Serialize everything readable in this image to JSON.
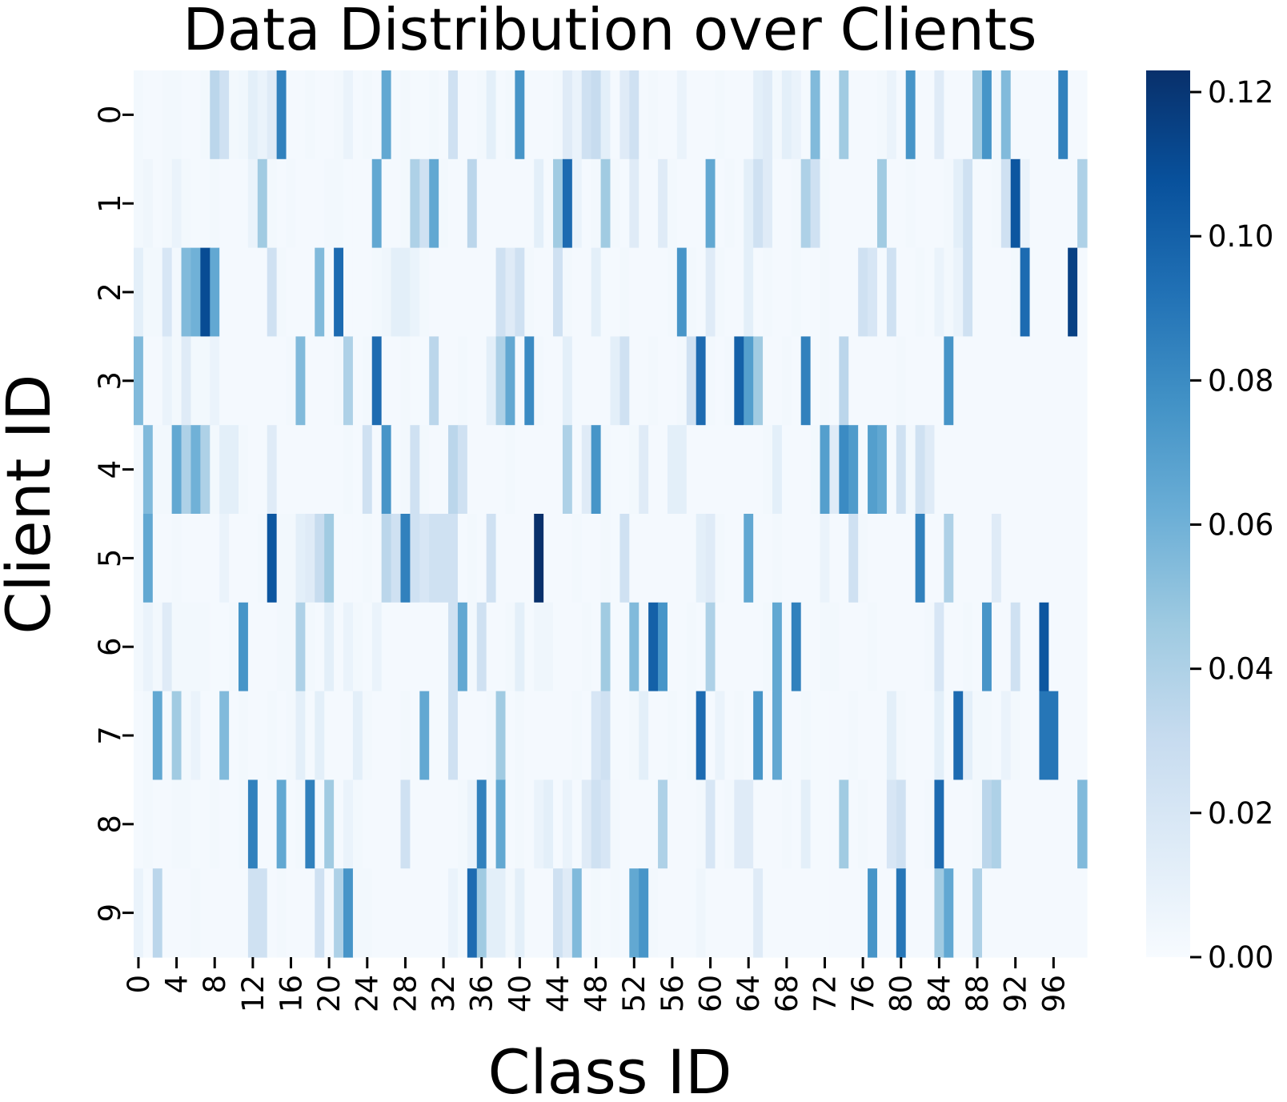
{
  "chart_data": {
    "type": "heatmap",
    "title": "Data Distribution over Clients",
    "xlabel": "Class ID",
    "ylabel": "Client ID",
    "colormap": "Blues",
    "colors": {
      "low": "#f7fbff",
      "high": "#08306b"
    },
    "num_classes": 100,
    "rows": [
      "0",
      "1",
      "2",
      "3",
      "4",
      "5",
      "6",
      "7",
      "8",
      "9"
    ],
    "x_tick_labels": [
      "0",
      "4",
      "8",
      "12",
      "16",
      "20",
      "24",
      "28",
      "32",
      "36",
      "40",
      "44",
      "48",
      "52",
      "56",
      "60",
      "64",
      "68",
      "72",
      "76",
      "80",
      "84",
      "88",
      "92",
      "96"
    ],
    "x_tick_values": [
      0,
      4,
      8,
      12,
      16,
      20,
      24,
      28,
      32,
      36,
      40,
      44,
      48,
      52,
      56,
      60,
      64,
      68,
      72,
      76,
      80,
      84,
      88,
      92,
      96
    ],
    "colorbar": {
      "range": [
        0,
        0.123
      ],
      "ticks": [
        0.0,
        0.02,
        0.04,
        0.06,
        0.08,
        0.1,
        0.12
      ],
      "tick_labels": [
        "0.00",
        "0.02",
        "0.04",
        "0.06",
        "0.08",
        "0.10",
        "0.12"
      ]
    },
    "values": [
      [
        0.003,
        0.002,
        0.002,
        0.003,
        0.003,
        0.002,
        0.002,
        0.003,
        0.035,
        0.025,
        0.003,
        0.004,
        0.012,
        0.008,
        0.015,
        0.085,
        0.002,
        0.002,
        0.003,
        0.002,
        0.002,
        0.003,
        0.008,
        0.002,
        0.003,
        0.002,
        0.065,
        0.002,
        0.003,
        0.002,
        0.002,
        0.003,
        0.002,
        0.025,
        0.002,
        0.002,
        0.003,
        0.012,
        0.002,
        0.003,
        0.075,
        0.002,
        0.002,
        0.002,
        0.003,
        0.015,
        0.008,
        0.025,
        0.03,
        0.012,
        0.002,
        0.015,
        0.025,
        0.002,
        0.003,
        0.002,
        0.002,
        0.008,
        0.002,
        0.002,
        0.002,
        0.003,
        0.002,
        0.002,
        0.002,
        0.012,
        0.015,
        0.003,
        0.012,
        0.008,
        0.002,
        0.055,
        0.002,
        0.002,
        0.045,
        0.002,
        0.002,
        0.002,
        0.003,
        0.008,
        0.002,
        0.075,
        0.002,
        0.002,
        0.015,
        0.002,
        0.002,
        0.002,
        0.045,
        0.075,
        0.003,
        0.055,
        0.002,
        0.002,
        0.002,
        0.002,
        0.002,
        0.085,
        0.002,
        0.002
      ],
      [
        0.003,
        0.005,
        0.002,
        0.003,
        0.008,
        0.003,
        0.002,
        0.002,
        0.003,
        0.002,
        0.002,
        0.002,
        0.008,
        0.045,
        0.003,
        0.002,
        0.003,
        0.002,
        0.002,
        0.002,
        0.003,
        0.003,
        0.002,
        0.002,
        0.002,
        0.065,
        0.002,
        0.002,
        0.003,
        0.04,
        0.025,
        0.065,
        0.003,
        0.002,
        0.002,
        0.035,
        0.002,
        0.002,
        0.002,
        0.002,
        0.002,
        0.002,
        0.012,
        0.002,
        0.045,
        0.095,
        0.008,
        0.002,
        0.003,
        0.045,
        0.003,
        0.002,
        0.015,
        0.002,
        0.002,
        0.015,
        0.003,
        0.002,
        0.002,
        0.002,
        0.065,
        0.002,
        0.003,
        0.002,
        0.012,
        0.025,
        0.015,
        0.002,
        0.002,
        0.003,
        0.04,
        0.025,
        0.003,
        0.002,
        0.002,
        0.002,
        0.002,
        0.002,
        0.045,
        0.002,
        0.002,
        0.003,
        0.002,
        0.002,
        0.002,
        0.003,
        0.012,
        0.025,
        0.002,
        0.002,
        0.003,
        0.025,
        0.105,
        0.008,
        0.002,
        0.002,
        0.002,
        0.002,
        0.002,
        0.04
      ],
      [
        0.012,
        0.003,
        0.003,
        0.02,
        0.003,
        0.055,
        0.06,
        0.11,
        0.065,
        0.002,
        0.002,
        0.002,
        0.002,
        0.002,
        0.025,
        0.003,
        0.002,
        0.002,
        0.002,
        0.055,
        0.002,
        0.095,
        0.002,
        0.002,
        0.002,
        0.003,
        0.005,
        0.012,
        0.012,
        0.008,
        0.003,
        0.002,
        0.002,
        0.002,
        0.002,
        0.002,
        0.002,
        0.002,
        0.025,
        0.015,
        0.025,
        0.003,
        0.002,
        0.002,
        0.025,
        0.003,
        0.002,
        0.002,
        0.012,
        0.002,
        0.002,
        0.003,
        0.002,
        0.002,
        0.002,
        0.002,
        0.003,
        0.075,
        0.003,
        0.002,
        0.015,
        0.003,
        0.002,
        0.002,
        0.012,
        0.002,
        0.003,
        0.002,
        0.002,
        0.003,
        0.002,
        0.002,
        0.003,
        0.002,
        0.002,
        0.002,
        0.025,
        0.02,
        0.002,
        0.025,
        0.002,
        0.002,
        0.003,
        0.002,
        0.008,
        0.003,
        0.008,
        0.025,
        0.002,
        0.002,
        0.002,
        0.002,
        0.003,
        0.095,
        0.002,
        0.002,
        0.002,
        0.002,
        0.115,
        0.002
      ],
      [
        0.055,
        0.002,
        0.002,
        0.008,
        0.003,
        0.015,
        0.003,
        0.003,
        0.008,
        0.002,
        0.002,
        0.002,
        0.002,
        0.002,
        0.002,
        0.002,
        0.003,
        0.055,
        0.002,
        0.002,
        0.002,
        0.003,
        0.04,
        0.002,
        0.003,
        0.095,
        0.002,
        0.002,
        0.003,
        0.002,
        0.002,
        0.035,
        0.002,
        0.002,
        0.003,
        0.002,
        0.002,
        0.012,
        0.04,
        0.065,
        0.002,
        0.08,
        0.003,
        0.002,
        0.002,
        0.012,
        0.002,
        0.002,
        0.002,
        0.002,
        0.012,
        0.025,
        0.002,
        0.002,
        0.003,
        0.002,
        0.002,
        0.003,
        0.025,
        0.095,
        0.003,
        0.002,
        0.003,
        0.1,
        0.07,
        0.045,
        0.002,
        0.002,
        0.003,
        0.002,
        0.085,
        0.002,
        0.003,
        0.002,
        0.035,
        0.002,
        0.002,
        0.002,
        0.002,
        0.002,
        0.003,
        0.002,
        0.002,
        0.002,
        0.002,
        0.075,
        0.002,
        0.002,
        0.002,
        0.002,
        0.002,
        0.002,
        0.002,
        0.002,
        0.002,
        0.002,
        0.002,
        0.002,
        0.002,
        0.002
      ],
      [
        0.003,
        0.055,
        0.003,
        0.003,
        0.065,
        0.04,
        0.06,
        0.04,
        0.003,
        0.012,
        0.012,
        0.003,
        0.002,
        0.002,
        0.015,
        0.002,
        0.002,
        0.002,
        0.002,
        0.002,
        0.002,
        0.002,
        0.003,
        0.002,
        0.025,
        0.002,
        0.075,
        0.002,
        0.003,
        0.025,
        0.003,
        0.002,
        0.002,
        0.035,
        0.025,
        0.002,
        0.002,
        0.002,
        0.002,
        0.003,
        0.002,
        0.002,
        0.002,
        0.002,
        0.002,
        0.04,
        0.002,
        0.015,
        0.075,
        0.003,
        0.002,
        0.002,
        0.003,
        0.015,
        0.002,
        0.002,
        0.012,
        0.012,
        0.002,
        0.002,
        0.002,
        0.002,
        0.002,
        0.002,
        0.002,
        0.002,
        0.003,
        0.012,
        0.002,
        0.002,
        0.002,
        0.003,
        0.07,
        0.015,
        0.08,
        0.072,
        0.002,
        0.07,
        0.065,
        0.002,
        0.025,
        0.003,
        0.025,
        0.015,
        0.002,
        0.002,
        0.002,
        0.002,
        0.002,
        0.002,
        0.002,
        0.002,
        0.002,
        0.002,
        0.002,
        0.002,
        0.002,
        0.002,
        0.002,
        0.002
      ],
      [
        0.003,
        0.065,
        0.002,
        0.002,
        0.003,
        0.002,
        0.002,
        0.002,
        0.002,
        0.008,
        0.002,
        0.002,
        0.002,
        0.003,
        0.105,
        0.003,
        0.003,
        0.012,
        0.015,
        0.03,
        0.045,
        0.002,
        0.002,
        0.002,
        0.003,
        0.002,
        0.035,
        0.025,
        0.085,
        0.025,
        0.02,
        0.025,
        0.025,
        0.025,
        0.002,
        0.003,
        0.002,
        0.025,
        0.002,
        0.002,
        0.002,
        0.002,
        0.123,
        0.002,
        0.002,
        0.002,
        0.003,
        0.002,
        0.002,
        0.003,
        0.002,
        0.025,
        0.002,
        0.002,
        0.002,
        0.002,
        0.002,
        0.002,
        0.002,
        0.012,
        0.015,
        0.003,
        0.002,
        0.002,
        0.065,
        0.002,
        0.002,
        0.003,
        0.002,
        0.002,
        0.002,
        0.002,
        0.008,
        0.002,
        0.002,
        0.025,
        0.003,
        0.002,
        0.002,
        0.002,
        0.002,
        0.002,
        0.085,
        0.002,
        0.002,
        0.04,
        0.002,
        0.002,
        0.002,
        0.002,
        0.015,
        0.002,
        0.002,
        0.002,
        0.002,
        0.002,
        0.002,
        0.002,
        0.002,
        0.002
      ],
      [
        0.003,
        0.008,
        0.003,
        0.015,
        0.003,
        0.003,
        0.003,
        0.003,
        0.002,
        0.002,
        0.003,
        0.075,
        0.002,
        0.002,
        0.002,
        0.003,
        0.003,
        0.04,
        0.003,
        0.002,
        0.012,
        0.002,
        0.008,
        0.003,
        0.002,
        0.008,
        0.002,
        0.002,
        0.002,
        0.002,
        0.002,
        0.002,
        0.002,
        0.025,
        0.065,
        0.003,
        0.025,
        0.002,
        0.002,
        0.003,
        0.012,
        0.002,
        0.005,
        0.005,
        0.002,
        0.002,
        0.002,
        0.003,
        0.002,
        0.045,
        0.002,
        0.002,
        0.055,
        0.003,
        0.1,
        0.075,
        0.002,
        0.002,
        0.003,
        0.002,
        0.04,
        0.002,
        0.002,
        0.002,
        0.002,
        0.002,
        0.003,
        0.065,
        0.002,
        0.085,
        0.002,
        0.002,
        0.003,
        0.003,
        0.002,
        0.002,
        0.002,
        0.003,
        0.002,
        0.002,
        0.002,
        0.002,
        0.002,
        0.003,
        0.02,
        0.002,
        0.002,
        0.003,
        0.002,
        0.075,
        0.002,
        0.002,
        0.025,
        0.002,
        0.002,
        0.105,
        0.002,
        0.002,
        0.002,
        0.002
      ],
      [
        0.002,
        0.003,
        0.065,
        0.002,
        0.045,
        0.003,
        0.008,
        0.002,
        0.002,
        0.055,
        0.002,
        0.003,
        0.002,
        0.002,
        0.003,
        0.002,
        0.003,
        0.012,
        0.002,
        0.012,
        0.002,
        0.002,
        0.002,
        0.012,
        0.003,
        0.002,
        0.002,
        0.002,
        0.003,
        0.002,
        0.065,
        0.002,
        0.002,
        0.025,
        0.002,
        0.002,
        0.002,
        0.003,
        0.045,
        0.002,
        0.003,
        0.002,
        0.002,
        0.002,
        0.002,
        0.002,
        0.003,
        0.002,
        0.02,
        0.025,
        0.002,
        0.002,
        0.003,
        0.012,
        0.002,
        0.002,
        0.003,
        0.002,
        0.003,
        0.095,
        0.002,
        0.008,
        0.002,
        0.003,
        0.002,
        0.075,
        0.002,
        0.065,
        0.002,
        0.002,
        0.003,
        0.002,
        0.002,
        0.002,
        0.002,
        0.003,
        0.002,
        0.002,
        0.002,
        0.012,
        0.003,
        0.002,
        0.002,
        0.002,
        0.012,
        0.002,
        0.095,
        0.012,
        0.003,
        0.003,
        0.002,
        0.008,
        0.003,
        0.002,
        0.002,
        0.09,
        0.09,
        0.002,
        0.002,
        0.002
      ],
      [
        0.002,
        0.003,
        0.002,
        0.002,
        0.003,
        0.003,
        0.002,
        0.002,
        0.003,
        0.002,
        0.002,
        0.003,
        0.085,
        0.002,
        0.002,
        0.065,
        0.002,
        0.003,
        0.085,
        0.002,
        0.045,
        0.002,
        0.008,
        0.003,
        0.002,
        0.002,
        0.002,
        0.002,
        0.025,
        0.002,
        0.002,
        0.002,
        0.002,
        0.002,
        0.003,
        0.008,
        0.085,
        0.003,
        0.065,
        0.002,
        0.003,
        0.002,
        0.008,
        0.012,
        0.002,
        0.008,
        0.002,
        0.015,
        0.025,
        0.02,
        0.003,
        0.002,
        0.002,
        0.002,
        0.002,
        0.04,
        0.002,
        0.002,
        0.002,
        0.003,
        0.02,
        0.002,
        0.003,
        0.015,
        0.015,
        0.002,
        0.002,
        0.002,
        0.003,
        0.002,
        0.012,
        0.002,
        0.002,
        0.002,
        0.045,
        0.002,
        0.003,
        0.002,
        0.002,
        0.02,
        0.025,
        0.002,
        0.002,
        0.003,
        0.095,
        0.002,
        0.002,
        0.002,
        0.003,
        0.035,
        0.04,
        0.002,
        0.002,
        0.002,
        0.002,
        0.002,
        0.002,
        0.002,
        0.002,
        0.055
      ],
      [
        0.008,
        0.002,
        0.035,
        0.002,
        0.002,
        0.002,
        0.003,
        0.002,
        0.002,
        0.002,
        0.002,
        0.002,
        0.025,
        0.025,
        0.002,
        0.003,
        0.002,
        0.002,
        0.002,
        0.025,
        0.002,
        0.04,
        0.075,
        0.003,
        0.003,
        0.002,
        0.002,
        0.002,
        0.002,
        0.002,
        0.002,
        0.002,
        0.002,
        0.008,
        0.003,
        0.095,
        0.045,
        0.012,
        0.012,
        0.003,
        0.012,
        0.002,
        0.002,
        0.002,
        0.025,
        0.015,
        0.055,
        0.002,
        0.003,
        0.002,
        0.003,
        0.002,
        0.065,
        0.075,
        0.003,
        0.002,
        0.002,
        0.002,
        0.002,
        0.005,
        0.002,
        0.002,
        0.002,
        0.002,
        0.002,
        0.015,
        0.002,
        0.002,
        0.002,
        0.002,
        0.002,
        0.002,
        0.002,
        0.002,
        0.002,
        0.002,
        0.002,
        0.075,
        0.002,
        0.002,
        0.09,
        0.002,
        0.002,
        0.002,
        0.045,
        0.065,
        0.002,
        0.002,
        0.04,
        0.002,
        0.002,
        0.002,
        0.002,
        0.002,
        0.002,
        0.002,
        0.002,
        0.002,
        0.002,
        0.002
      ]
    ]
  }
}
